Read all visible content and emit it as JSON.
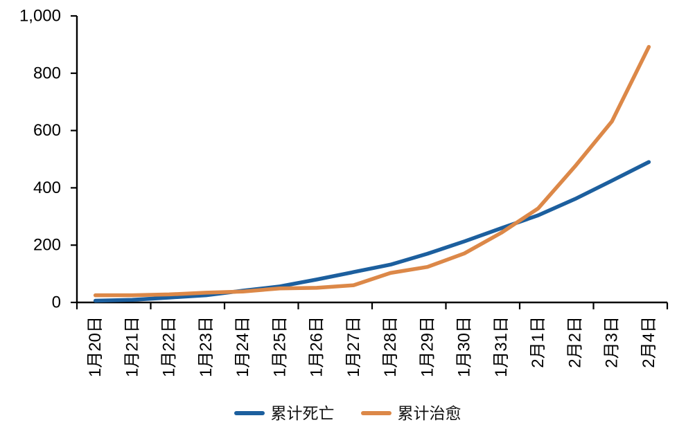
{
  "chart_data": {
    "type": "line",
    "title": "",
    "categories": [
      "1月20日",
      "1月21日",
      "1月22日",
      "1月23日",
      "1月24日",
      "1月25日",
      "1月26日",
      "1月27日",
      "1月28日",
      "1月29日",
      "1月30日",
      "1月31日",
      "2月1日",
      "2月2日",
      "2月3日",
      "2月4日"
    ],
    "series": [
      {
        "name": "累计死亡",
        "color": "#1c5f9e",
        "values": [
          6,
          9,
          17,
          25,
          41,
          56,
          80,
          106,
          132,
          170,
          213,
          259,
          304,
          361,
          425,
          490
        ]
      },
      {
        "name": "累计治愈",
        "color": "#dc8848",
        "values": [
          25,
          25,
          28,
          34,
          38,
          49,
          51,
          60,
          103,
          124,
          171,
          243,
          328,
          475,
          632,
          892
        ]
      }
    ],
    "xlabel": "",
    "ylabel": "",
    "ylim": [
      0,
      1000
    ],
    "ytick_step": 200,
    "ytick_labels": [
      "0",
      "200",
      "400",
      "600",
      "800",
      "1,000"
    ],
    "xtick_mark_interval": 2,
    "grid": "off",
    "legend_position": "bottom",
    "axis_color": "#000000",
    "background_color": "#ffffff"
  }
}
